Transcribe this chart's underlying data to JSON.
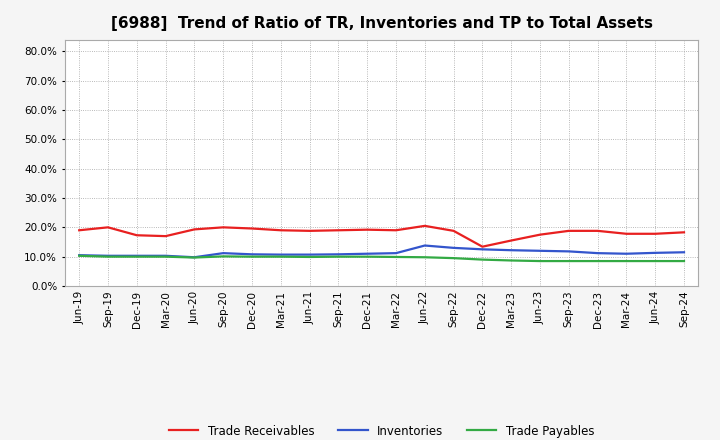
{
  "title": "[6988]  Trend of Ratio of TR, Inventories and TP to Total Assets",
  "x_labels": [
    "Jun-19",
    "Sep-19",
    "Dec-19",
    "Mar-20",
    "Jun-20",
    "Sep-20",
    "Dec-20",
    "Mar-21",
    "Jun-21",
    "Sep-21",
    "Dec-21",
    "Mar-22",
    "Jun-22",
    "Sep-22",
    "Dec-22",
    "Mar-23",
    "Jun-23",
    "Sep-23",
    "Dec-23",
    "Mar-24",
    "Jun-24",
    "Sep-24"
  ],
  "trade_receivables": [
    0.19,
    0.2,
    0.173,
    0.17,
    0.193,
    0.2,
    0.196,
    0.19,
    0.188,
    0.19,
    0.192,
    0.19,
    0.205,
    0.188,
    0.134,
    0.155,
    0.175,
    0.188,
    0.188,
    0.178,
    0.178,
    0.183
  ],
  "inventories": [
    0.105,
    0.103,
    0.103,
    0.103,
    0.098,
    0.112,
    0.108,
    0.107,
    0.107,
    0.108,
    0.11,
    0.112,
    0.138,
    0.13,
    0.125,
    0.122,
    0.12,
    0.118,
    0.112,
    0.11,
    0.113,
    0.115
  ],
  "trade_payables": [
    0.103,
    0.1,
    0.1,
    0.1,
    0.097,
    0.101,
    0.1,
    0.1,
    0.099,
    0.1,
    0.1,
    0.099,
    0.098,
    0.095,
    0.09,
    0.087,
    0.085,
    0.085,
    0.085,
    0.085,
    0.085,
    0.085
  ],
  "tr_color": "#e82020",
  "inv_color": "#3355cc",
  "tp_color": "#33aa44",
  "ylim_min": 0.0,
  "ylim_max": 0.84,
  "yticks": [
    0.0,
    0.1,
    0.2,
    0.3,
    0.4,
    0.5,
    0.6,
    0.7,
    0.8
  ],
  "legend_labels": [
    "Trade Receivables",
    "Inventories",
    "Trade Payables"
  ],
  "bg_color": "#f5f5f5",
  "plot_bg_color": "#ffffff",
  "grid_color": "#999999",
  "line_width": 1.6,
  "title_fontsize": 11,
  "tick_fontsize": 7.5,
  "legend_fontsize": 8.5
}
